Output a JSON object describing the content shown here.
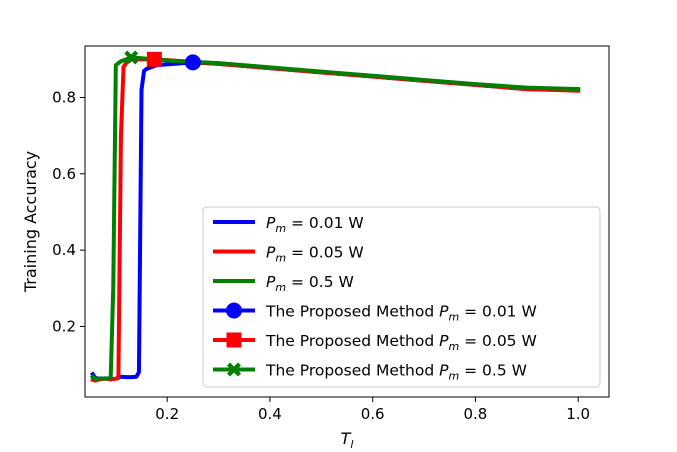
{
  "chart_data": {
    "type": "line",
    "xlabel": "T_l",
    "ylabel": "Training Accuracy",
    "xlim": [
      0.04,
      1.06
    ],
    "ylim": [
      0.015,
      0.935
    ],
    "xticks": [
      0.2,
      0.4,
      0.6,
      0.8,
      1.0
    ],
    "xtick_labels": [
      "0.2",
      "0.4",
      "0.6",
      "0.8",
      "1.0"
    ],
    "yticks": [
      0.2,
      0.4,
      0.6,
      0.8
    ],
    "ytick_labels": [
      "0.2",
      "0.4",
      "0.6",
      "0.8"
    ],
    "grid": false,
    "legend_position": "lower-right",
    "series": [
      {
        "name": "P_m = 0.01 W",
        "color": "#0000ff",
        "x": [
          0.055,
          0.06,
          0.07,
          0.08,
          0.09,
          0.1,
          0.11,
          0.12,
          0.13,
          0.14,
          0.145,
          0.15,
          0.155,
          0.16,
          0.18,
          0.25,
          0.3,
          0.4,
          0.5,
          0.6,
          0.7,
          0.8,
          0.9,
          1.0
        ],
        "y": [
          0.075,
          0.065,
          0.063,
          0.064,
          0.062,
          0.063,
          0.068,
          0.067,
          0.067,
          0.068,
          0.08,
          0.82,
          0.87,
          0.875,
          0.885,
          0.892,
          0.888,
          0.877,
          0.866,
          0.855,
          0.844,
          0.833,
          0.822,
          0.82
        ]
      },
      {
        "name": "P_m = 0.05 W",
        "color": "#ff0000",
        "x": [
          0.055,
          0.06,
          0.07,
          0.08,
          0.09,
          0.1,
          0.105,
          0.11,
          0.115,
          0.12,
          0.13,
          0.15,
          0.175,
          0.2,
          0.3,
          0.4,
          0.5,
          0.6,
          0.7,
          0.8,
          0.9,
          1.0
        ],
        "y": [
          0.06,
          0.058,
          0.062,
          0.063,
          0.061,
          0.063,
          0.065,
          0.7,
          0.88,
          0.89,
          0.9,
          0.9,
          0.9,
          0.898,
          0.888,
          0.877,
          0.866,
          0.855,
          0.844,
          0.833,
          0.822,
          0.818
        ]
      },
      {
        "name": "P_m = 0.5 W",
        "color": "#008000",
        "x": [
          0.055,
          0.06,
          0.07,
          0.08,
          0.09,
          0.095,
          0.1,
          0.11,
          0.12,
          0.13,
          0.15,
          0.175,
          0.2,
          0.3,
          0.4,
          0.5,
          0.6,
          0.7,
          0.8,
          0.9,
          1.0
        ],
        "y": [
          0.068,
          0.062,
          0.064,
          0.063,
          0.065,
          0.3,
          0.885,
          0.895,
          0.9,
          0.905,
          0.903,
          0.9,
          0.897,
          0.89,
          0.879,
          0.868,
          0.857,
          0.846,
          0.835,
          0.826,
          0.822
        ]
      }
    ],
    "markers": [
      {
        "name": "The Proposed Method P_m = 0.01 W",
        "color": "#0000ff",
        "shape": "circle",
        "x": 0.25,
        "y": 0.892
      },
      {
        "name": "The Proposed Method P_m = 0.05 W",
        "color": "#ff0000",
        "shape": "square",
        "x": 0.175,
        "y": 0.9
      },
      {
        "name": "The Proposed Method P_m = 0.5 W",
        "color": "#008000",
        "shape": "x",
        "x": 0.13,
        "y": 0.905
      }
    ],
    "legend": [
      {
        "kind": "line",
        "label_main": "P",
        "label_sub": "m",
        "label_rest": " = 0.01 W",
        "color": "#0000ff"
      },
      {
        "kind": "line",
        "label_main": "P",
        "label_sub": "m",
        "label_rest": " = 0.05 W",
        "color": "#ff0000"
      },
      {
        "kind": "line",
        "label_main": "P",
        "label_sub": "m",
        "label_rest": " = 0.5 W",
        "color": "#008000"
      },
      {
        "kind": "marker",
        "shape": "circle",
        "label_prefix": "The Proposed Method ",
        "label_main": "P",
        "label_sub": "m",
        "label_rest": " = 0.01 W",
        "color": "#0000ff"
      },
      {
        "kind": "marker",
        "shape": "square",
        "label_prefix": "The Proposed Method ",
        "label_main": "P",
        "label_sub": "m",
        "label_rest": " = 0.05 W",
        "color": "#ff0000"
      },
      {
        "kind": "marker",
        "shape": "x",
        "label_prefix": "The Proposed Method ",
        "label_main": "P",
        "label_sub": "m",
        "label_rest": " = 0.5 W",
        "color": "#008000"
      }
    ]
  }
}
